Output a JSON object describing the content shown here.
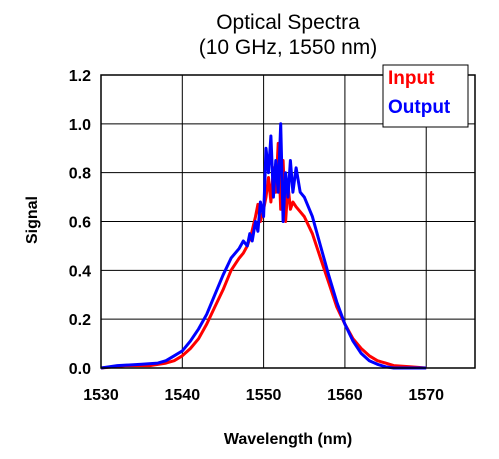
{
  "chart_data": {
    "type": "line",
    "title_line1": "Optical Spectra",
    "title_line2": "(10 GHz, 1550 nm)",
    "xlabel": "Wavelength (nm)",
    "ylabel": "Signal",
    "xlim": [
      1530,
      1576
    ],
    "ylim": [
      0,
      1.2
    ],
    "xticks": [
      1530,
      1540,
      1550,
      1560,
      1570
    ],
    "xtick_labels": [
      "1530",
      "1540",
      "1550",
      "1560",
      "1570"
    ],
    "yticks": [
      0,
      0.2,
      0.4,
      0.6,
      0.8,
      1.0,
      1.2
    ],
    "ytick_labels": [
      "0.0",
      "0.2",
      "0.4",
      "0.6",
      "0.8",
      "1.0",
      "1.2"
    ],
    "grid": true,
    "legend_position": "top-right",
    "series": [
      {
        "name": "Input",
        "color": "#ff0000",
        "points": [
          [
            1530,
            0.0
          ],
          [
            1533,
            0.01
          ],
          [
            1536,
            0.01
          ],
          [
            1538,
            0.02
          ],
          [
            1539,
            0.03
          ],
          [
            1540,
            0.05
          ],
          [
            1541,
            0.08
          ],
          [
            1542,
            0.12
          ],
          [
            1543,
            0.18
          ],
          [
            1544,
            0.25
          ],
          [
            1545,
            0.32
          ],
          [
            1546,
            0.4
          ],
          [
            1547,
            0.45
          ],
          [
            1547.5,
            0.47
          ],
          [
            1548,
            0.5
          ],
          [
            1548.5,
            0.55
          ],
          [
            1549,
            0.62
          ],
          [
            1549.3,
            0.67
          ],
          [
            1549.6,
            0.6
          ],
          [
            1550,
            0.65
          ],
          [
            1550.3,
            0.7
          ],
          [
            1550.6,
            0.78
          ],
          [
            1550.9,
            0.68
          ],
          [
            1551.2,
            0.82
          ],
          [
            1551.5,
            0.72
          ],
          [
            1551.8,
            0.92
          ],
          [
            1552.1,
            0.65
          ],
          [
            1552.4,
            0.85
          ],
          [
            1552.7,
            0.6
          ],
          [
            1553,
            0.75
          ],
          [
            1553.3,
            0.65
          ],
          [
            1553.6,
            0.68
          ],
          [
            1554,
            0.66
          ],
          [
            1554.5,
            0.64
          ],
          [
            1555,
            0.62
          ],
          [
            1556,
            0.55
          ],
          [
            1557,
            0.45
          ],
          [
            1558,
            0.35
          ],
          [
            1559,
            0.25
          ],
          [
            1560,
            0.18
          ],
          [
            1561,
            0.12
          ],
          [
            1562,
            0.08
          ],
          [
            1563,
            0.05
          ],
          [
            1564,
            0.03
          ],
          [
            1565,
            0.02
          ],
          [
            1566,
            0.01
          ],
          [
            1568,
            0.005
          ],
          [
            1570,
            0.0
          ]
        ]
      },
      {
        "name": "Output",
        "color": "#0000ff",
        "points": [
          [
            1530,
            0.0
          ],
          [
            1532,
            0.01
          ],
          [
            1535,
            0.015
          ],
          [
            1537,
            0.02
          ],
          [
            1538,
            0.03
          ],
          [
            1539,
            0.05
          ],
          [
            1540,
            0.07
          ],
          [
            1541,
            0.11
          ],
          [
            1542,
            0.16
          ],
          [
            1543,
            0.22
          ],
          [
            1544,
            0.3
          ],
          [
            1545,
            0.38
          ],
          [
            1546,
            0.45
          ],
          [
            1547,
            0.49
          ],
          [
            1547.5,
            0.52
          ],
          [
            1548,
            0.5
          ],
          [
            1548.3,
            0.55
          ],
          [
            1548.6,
            0.52
          ],
          [
            1549,
            0.6
          ],
          [
            1549.3,
            0.56
          ],
          [
            1549.6,
            0.68
          ],
          [
            1550,
            0.62
          ],
          [
            1550.3,
            0.9
          ],
          [
            1550.6,
            0.8
          ],
          [
            1550.9,
            0.95
          ],
          [
            1551.2,
            0.7
          ],
          [
            1551.5,
            0.85
          ],
          [
            1551.8,
            0.72
          ],
          [
            1552.1,
            1.0
          ],
          [
            1552.4,
            0.6
          ],
          [
            1552.7,
            0.8
          ],
          [
            1553,
            0.7
          ],
          [
            1553.3,
            0.85
          ],
          [
            1553.6,
            0.72
          ],
          [
            1554,
            0.82
          ],
          [
            1554.5,
            0.72
          ],
          [
            1555,
            0.7
          ],
          [
            1556,
            0.62
          ],
          [
            1557,
            0.5
          ],
          [
            1558,
            0.38
          ],
          [
            1559,
            0.27
          ],
          [
            1560,
            0.18
          ],
          [
            1561,
            0.11
          ],
          [
            1562,
            0.06
          ],
          [
            1563,
            0.03
          ],
          [
            1564,
            0.015
          ],
          [
            1565,
            0.005
          ],
          [
            1566,
            0.0
          ],
          [
            1570,
            0.0
          ]
        ]
      }
    ]
  }
}
